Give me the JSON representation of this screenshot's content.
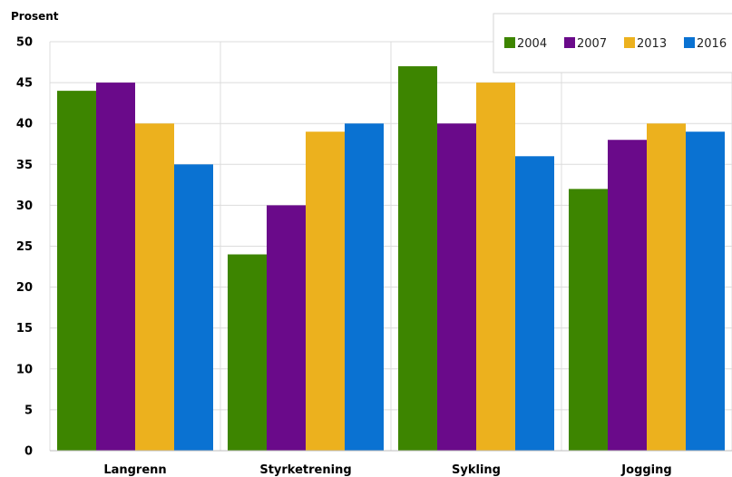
{
  "chart_data": {
    "type": "bar",
    "title": "",
    "xlabel": "",
    "ylabel": "Prosent",
    "ylim": [
      0,
      50
    ],
    "yticks": [
      0,
      5,
      10,
      15,
      20,
      25,
      30,
      35,
      40,
      45,
      50
    ],
    "grid": true,
    "legend_position": "top-right",
    "categories": [
      "Langrenn",
      "Styrketrening",
      "Sykling",
      "Jogging"
    ],
    "series": [
      {
        "name": "2004",
        "color": "#3d8500",
        "values": [
          44,
          24,
          47,
          32
        ]
      },
      {
        "name": "2007",
        "color": "#6a0a8a",
        "values": [
          45,
          30,
          40,
          38
        ]
      },
      {
        "name": "2013",
        "color": "#ecb11e",
        "values": [
          40,
          39,
          45,
          40
        ]
      },
      {
        "name": "2016",
        "color": "#0a72d2",
        "values": [
          35,
          40,
          36,
          39
        ]
      }
    ]
  }
}
